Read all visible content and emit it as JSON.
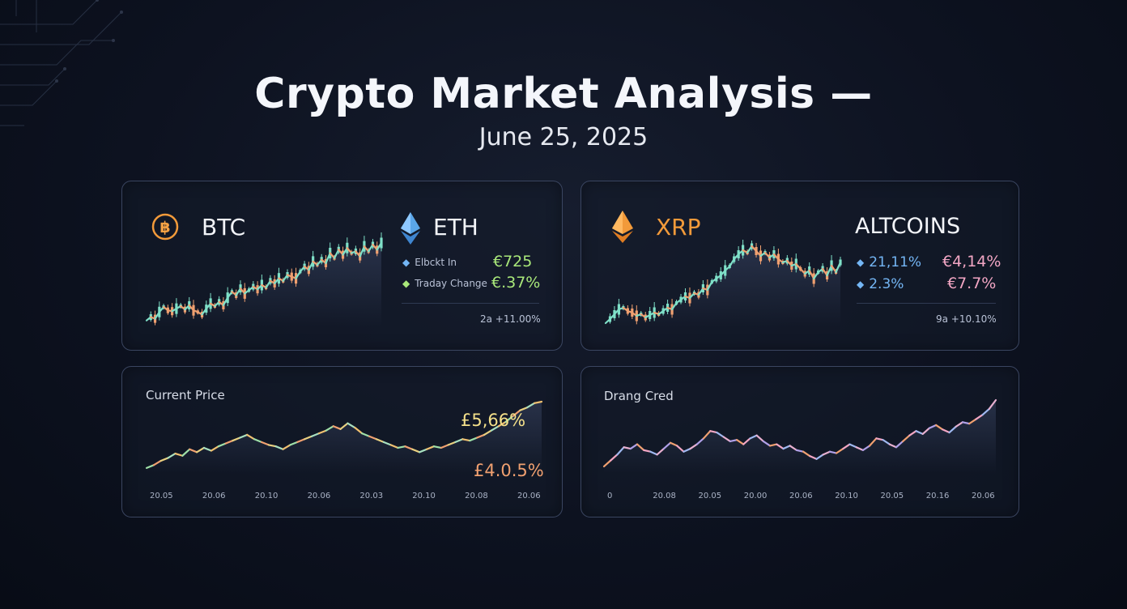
{
  "header": {
    "title": "Crypto Market Analysis —",
    "date": "June 25, 2025"
  },
  "colors": {
    "up": "#7fe0c8",
    "down": "#f0a070",
    "green": "#a9e87a",
    "pink": "#f2a6c4",
    "blue": "#74b6f5",
    "orange": "#f29a3a"
  },
  "panel1": {
    "btc_label": "BTC",
    "btc_icon": "bitcoin-icon",
    "eth_label": "ETH",
    "eth_icon": "ethereum-icon",
    "stats": [
      {
        "label": "Elbckt In",
        "value": "€725"
      },
      {
        "label": "Traday Change",
        "value": "€.37%"
      }
    ],
    "footer": "2a +11.00%"
  },
  "panel2": {
    "xrp_label": "XRP",
    "xrp_icon": "xrp-icon",
    "alt_label": "ALTCOINS",
    "stats": [
      {
        "left": "21,11%",
        "right": "€4,14%"
      },
      {
        "left": "2.3%",
        "right": "€7.7%"
      }
    ],
    "footer": "9a +10.10%"
  },
  "panel3": {
    "title": "Current Price",
    "value_top": "£5,66%",
    "value_bottom": "£4.0.5%"
  },
  "panel4": {
    "title": "Drang Cred"
  },
  "chart_data": [
    {
      "type": "line",
      "name": "BTC",
      "values": [
        8,
        12,
        10,
        18,
        24,
        20,
        19,
        22,
        25,
        21,
        26,
        20,
        18,
        15,
        22,
        28,
        25,
        30,
        26,
        35,
        42,
        38,
        46,
        40,
        44,
        48,
        45,
        50,
        47,
        55,
        52,
        58,
        55,
        62,
        60,
        58,
        66,
        72,
        68,
        78,
        74,
        80,
        76,
        88,
        82,
        92,
        86,
        94,
        88,
        90,
        84,
        96,
        90,
        98,
        92,
        100
      ]
    },
    {
      "type": "line",
      "name": "XRP",
      "values": [
        5,
        10,
        16,
        22,
        24,
        20,
        18,
        14,
        16,
        12,
        15,
        18,
        16,
        20,
        24,
        22,
        30,
        34,
        38,
        36,
        42,
        40,
        48,
        46,
        56,
        60,
        64,
        70,
        75,
        84,
        90,
        95,
        92,
        100,
        94,
        88,
        92,
        86,
        90,
        84,
        80,
        82,
        76,
        78,
        72,
        66,
        70,
        60,
        68,
        72,
        64,
        76,
        68,
        80
      ]
    },
    {
      "type": "line",
      "name": "Current Price",
      "x_ticks": [
        "20.05",
        "20.06",
        "20.10",
        "20.06",
        "20.03",
        "20.10",
        "20.08",
        "20.06"
      ],
      "values": [
        8,
        12,
        18,
        22,
        28,
        25,
        34,
        30,
        36,
        32,
        38,
        42,
        46,
        50,
        54,
        48,
        44,
        40,
        38,
        34,
        40,
        44,
        48,
        52,
        56,
        60,
        66,
        62,
        70,
        64,
        56,
        52,
        48,
        44,
        40,
        36,
        38,
        34,
        30,
        34,
        38,
        36,
        40,
        44,
        48,
        46,
        50,
        54,
        60,
        66,
        72,
        80,
        88,
        92,
        98,
        100
      ]
    },
    {
      "type": "line",
      "name": "Drang Cred",
      "x_ticks": [
        "0",
        "20.08",
        "20.05",
        "20.00",
        "20.06",
        "20.10",
        "20.05",
        "20.16",
        "20.06"
      ],
      "values": [
        10,
        18,
        26,
        36,
        34,
        40,
        32,
        30,
        26,
        34,
        42,
        38,
        30,
        34,
        40,
        48,
        58,
        56,
        50,
        44,
        46,
        40,
        48,
        52,
        44,
        38,
        40,
        34,
        38,
        32,
        30,
        24,
        20,
        26,
        30,
        28,
        34,
        40,
        36,
        32,
        38,
        48,
        46,
        40,
        36,
        44,
        52,
        58,
        54,
        62,
        66,
        60,
        56,
        64,
        70,
        68,
        74,
        80,
        88,
        100
      ]
    }
  ]
}
